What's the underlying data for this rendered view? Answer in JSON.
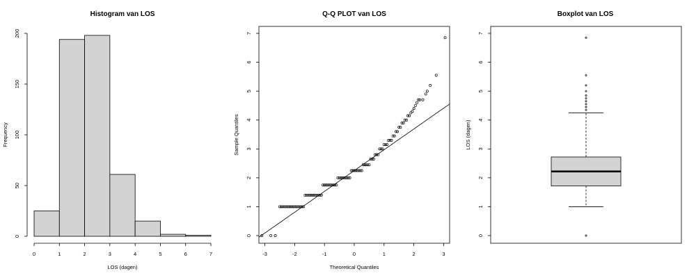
{
  "chart_data": [
    {
      "type": "bar",
      "title": "Histogram van LOS",
      "xlabel": "LOS (dagen)",
      "ylabel": "Frequency",
      "bin_edges": [
        0,
        1,
        2,
        3,
        4,
        5,
        6,
        7
      ],
      "values": [
        25,
        194,
        198,
        61,
        15,
        2,
        1
      ],
      "xlim": [
        0,
        7
      ],
      "ylim": [
        0,
        200
      ],
      "xticks": [
        "0",
        "1",
        "2",
        "3",
        "4",
        "5",
        "6",
        "7"
      ],
      "yticks": [
        "0",
        "50",
        "100",
        "150",
        "200"
      ],
      "colors": {
        "fill": "#d3d3d3",
        "stroke": "#000000"
      },
      "grid": false
    },
    {
      "type": "scatter",
      "title": "Q-Q PLOT van LOS",
      "xlabel": "Theoretical Quantiles",
      "ylabel": "Sample Quantiles",
      "xlim": [
        -3.2,
        3.2
      ],
      "ylim": [
        0,
        7
      ],
      "xticks": [
        "-3",
        "-2",
        "-1",
        "0",
        "1",
        "2",
        "3"
      ],
      "yticks": [
        "0",
        "1",
        "2",
        "3",
        "4",
        "5",
        "6",
        "7"
      ],
      "reference_line": {
        "intercept": 2.25,
        "slope": 0.72
      },
      "series": [
        {
          "points": [
            [
              -3.1,
              0
            ],
            [
              -2.8,
              0
            ],
            [
              -2.65,
              0
            ],
            [
              -2.5,
              1
            ],
            [
              -2.45,
              1
            ],
            [
              -2.4,
              1
            ],
            [
              -2.35,
              1
            ],
            [
              -2.3,
              1
            ],
            [
              -2.25,
              1
            ],
            [
              -2.2,
              1
            ],
            [
              -2.15,
              1
            ],
            [
              -2.1,
              1
            ],
            [
              -2.05,
              1
            ],
            [
              -2.0,
              1
            ],
            [
              -1.95,
              1
            ],
            [
              -1.9,
              1
            ],
            [
              -1.85,
              1
            ],
            [
              -1.8,
              1
            ],
            [
              -1.75,
              1
            ],
            [
              -1.7,
              1
            ],
            [
              -1.65,
              1.4
            ],
            [
              -1.6,
              1.4
            ],
            [
              -1.55,
              1.4
            ],
            [
              -1.5,
              1.4
            ],
            [
              -1.45,
              1.4
            ],
            [
              -1.4,
              1.4
            ],
            [
              -1.35,
              1.4
            ],
            [
              -1.3,
              1.4
            ],
            [
              -1.25,
              1.4
            ],
            [
              -1.2,
              1.4
            ],
            [
              -1.15,
              1.4
            ],
            [
              -1.1,
              1.4
            ],
            [
              -1.05,
              1.75
            ],
            [
              -1.0,
              1.75
            ],
            [
              -0.95,
              1.75
            ],
            [
              -0.9,
              1.75
            ],
            [
              -0.85,
              1.75
            ],
            [
              -0.8,
              1.75
            ],
            [
              -0.75,
              1.75
            ],
            [
              -0.7,
              1.75
            ],
            [
              -0.65,
              1.75
            ],
            [
              -0.6,
              1.75
            ],
            [
              -0.55,
              2.0
            ],
            [
              -0.5,
              2.0
            ],
            [
              -0.45,
              2.0
            ],
            [
              -0.4,
              2.0
            ],
            [
              -0.35,
              2.0
            ],
            [
              -0.3,
              2.0
            ],
            [
              -0.25,
              2.0
            ],
            [
              -0.2,
              2.0
            ],
            [
              -0.15,
              2.0
            ],
            [
              -0.1,
              2.25
            ],
            [
              -0.05,
              2.25
            ],
            [
              0.0,
              2.25
            ],
            [
              0.05,
              2.25
            ],
            [
              0.1,
              2.25
            ],
            [
              0.15,
              2.25
            ],
            [
              0.2,
              2.25
            ],
            [
              0.25,
              2.25
            ],
            [
              0.3,
              2.45
            ],
            [
              0.35,
              2.45
            ],
            [
              0.4,
              2.45
            ],
            [
              0.45,
              2.45
            ],
            [
              0.5,
              2.45
            ],
            [
              0.55,
              2.65
            ],
            [
              0.6,
              2.65
            ],
            [
              0.65,
              2.65
            ],
            [
              0.7,
              2.8
            ],
            [
              0.75,
              2.8
            ],
            [
              0.8,
              2.8
            ],
            [
              0.85,
              3.0
            ],
            [
              0.9,
              3.0
            ],
            [
              0.95,
              3.0
            ],
            [
              1.0,
              3.15
            ],
            [
              1.05,
              3.15
            ],
            [
              1.1,
              3.15
            ],
            [
              1.15,
              3.3
            ],
            [
              1.2,
              3.3
            ],
            [
              1.25,
              3.3
            ],
            [
              1.3,
              3.45
            ],
            [
              1.35,
              3.45
            ],
            [
              1.4,
              3.6
            ],
            [
              1.45,
              3.6
            ],
            [
              1.5,
              3.75
            ],
            [
              1.55,
              3.75
            ],
            [
              1.6,
              3.9
            ],
            [
              1.65,
              3.9
            ],
            [
              1.7,
              4.0
            ],
            [
              1.75,
              4.0
            ],
            [
              1.8,
              4.15
            ],
            [
              1.85,
              4.15
            ],
            [
              1.9,
              4.25
            ],
            [
              1.95,
              4.3
            ],
            [
              2.0,
              4.4
            ],
            [
              2.05,
              4.5
            ],
            [
              2.1,
              4.6
            ],
            [
              2.15,
              4.7
            ],
            [
              2.2,
              4.7
            ],
            [
              2.3,
              4.7
            ],
            [
              2.4,
              4.9
            ],
            [
              2.45,
              5.0
            ],
            [
              2.55,
              5.2
            ],
            [
              2.75,
              5.55
            ],
            [
              3.05,
              6.85
            ]
          ]
        }
      ],
      "grid": false
    },
    {
      "type": "box",
      "title": "Boxplot van LOS",
      "ylabel": "LOS (dagen)",
      "ylim": [
        0,
        7
      ],
      "yticks": [
        "0",
        "1",
        "2",
        "3",
        "4",
        "5",
        "6",
        "7"
      ],
      "whisker_low": 1.0,
      "q1": 1.72,
      "median": 2.22,
      "q3": 2.72,
      "whisker_high": 4.25,
      "outliers": [
        0,
        4.35,
        4.45,
        4.55,
        4.65,
        4.75,
        4.85,
        5.0,
        5.2,
        5.55,
        6.85
      ],
      "colors": {
        "box": "#d3d3d3",
        "stroke": "#000000"
      },
      "grid": false
    }
  ]
}
